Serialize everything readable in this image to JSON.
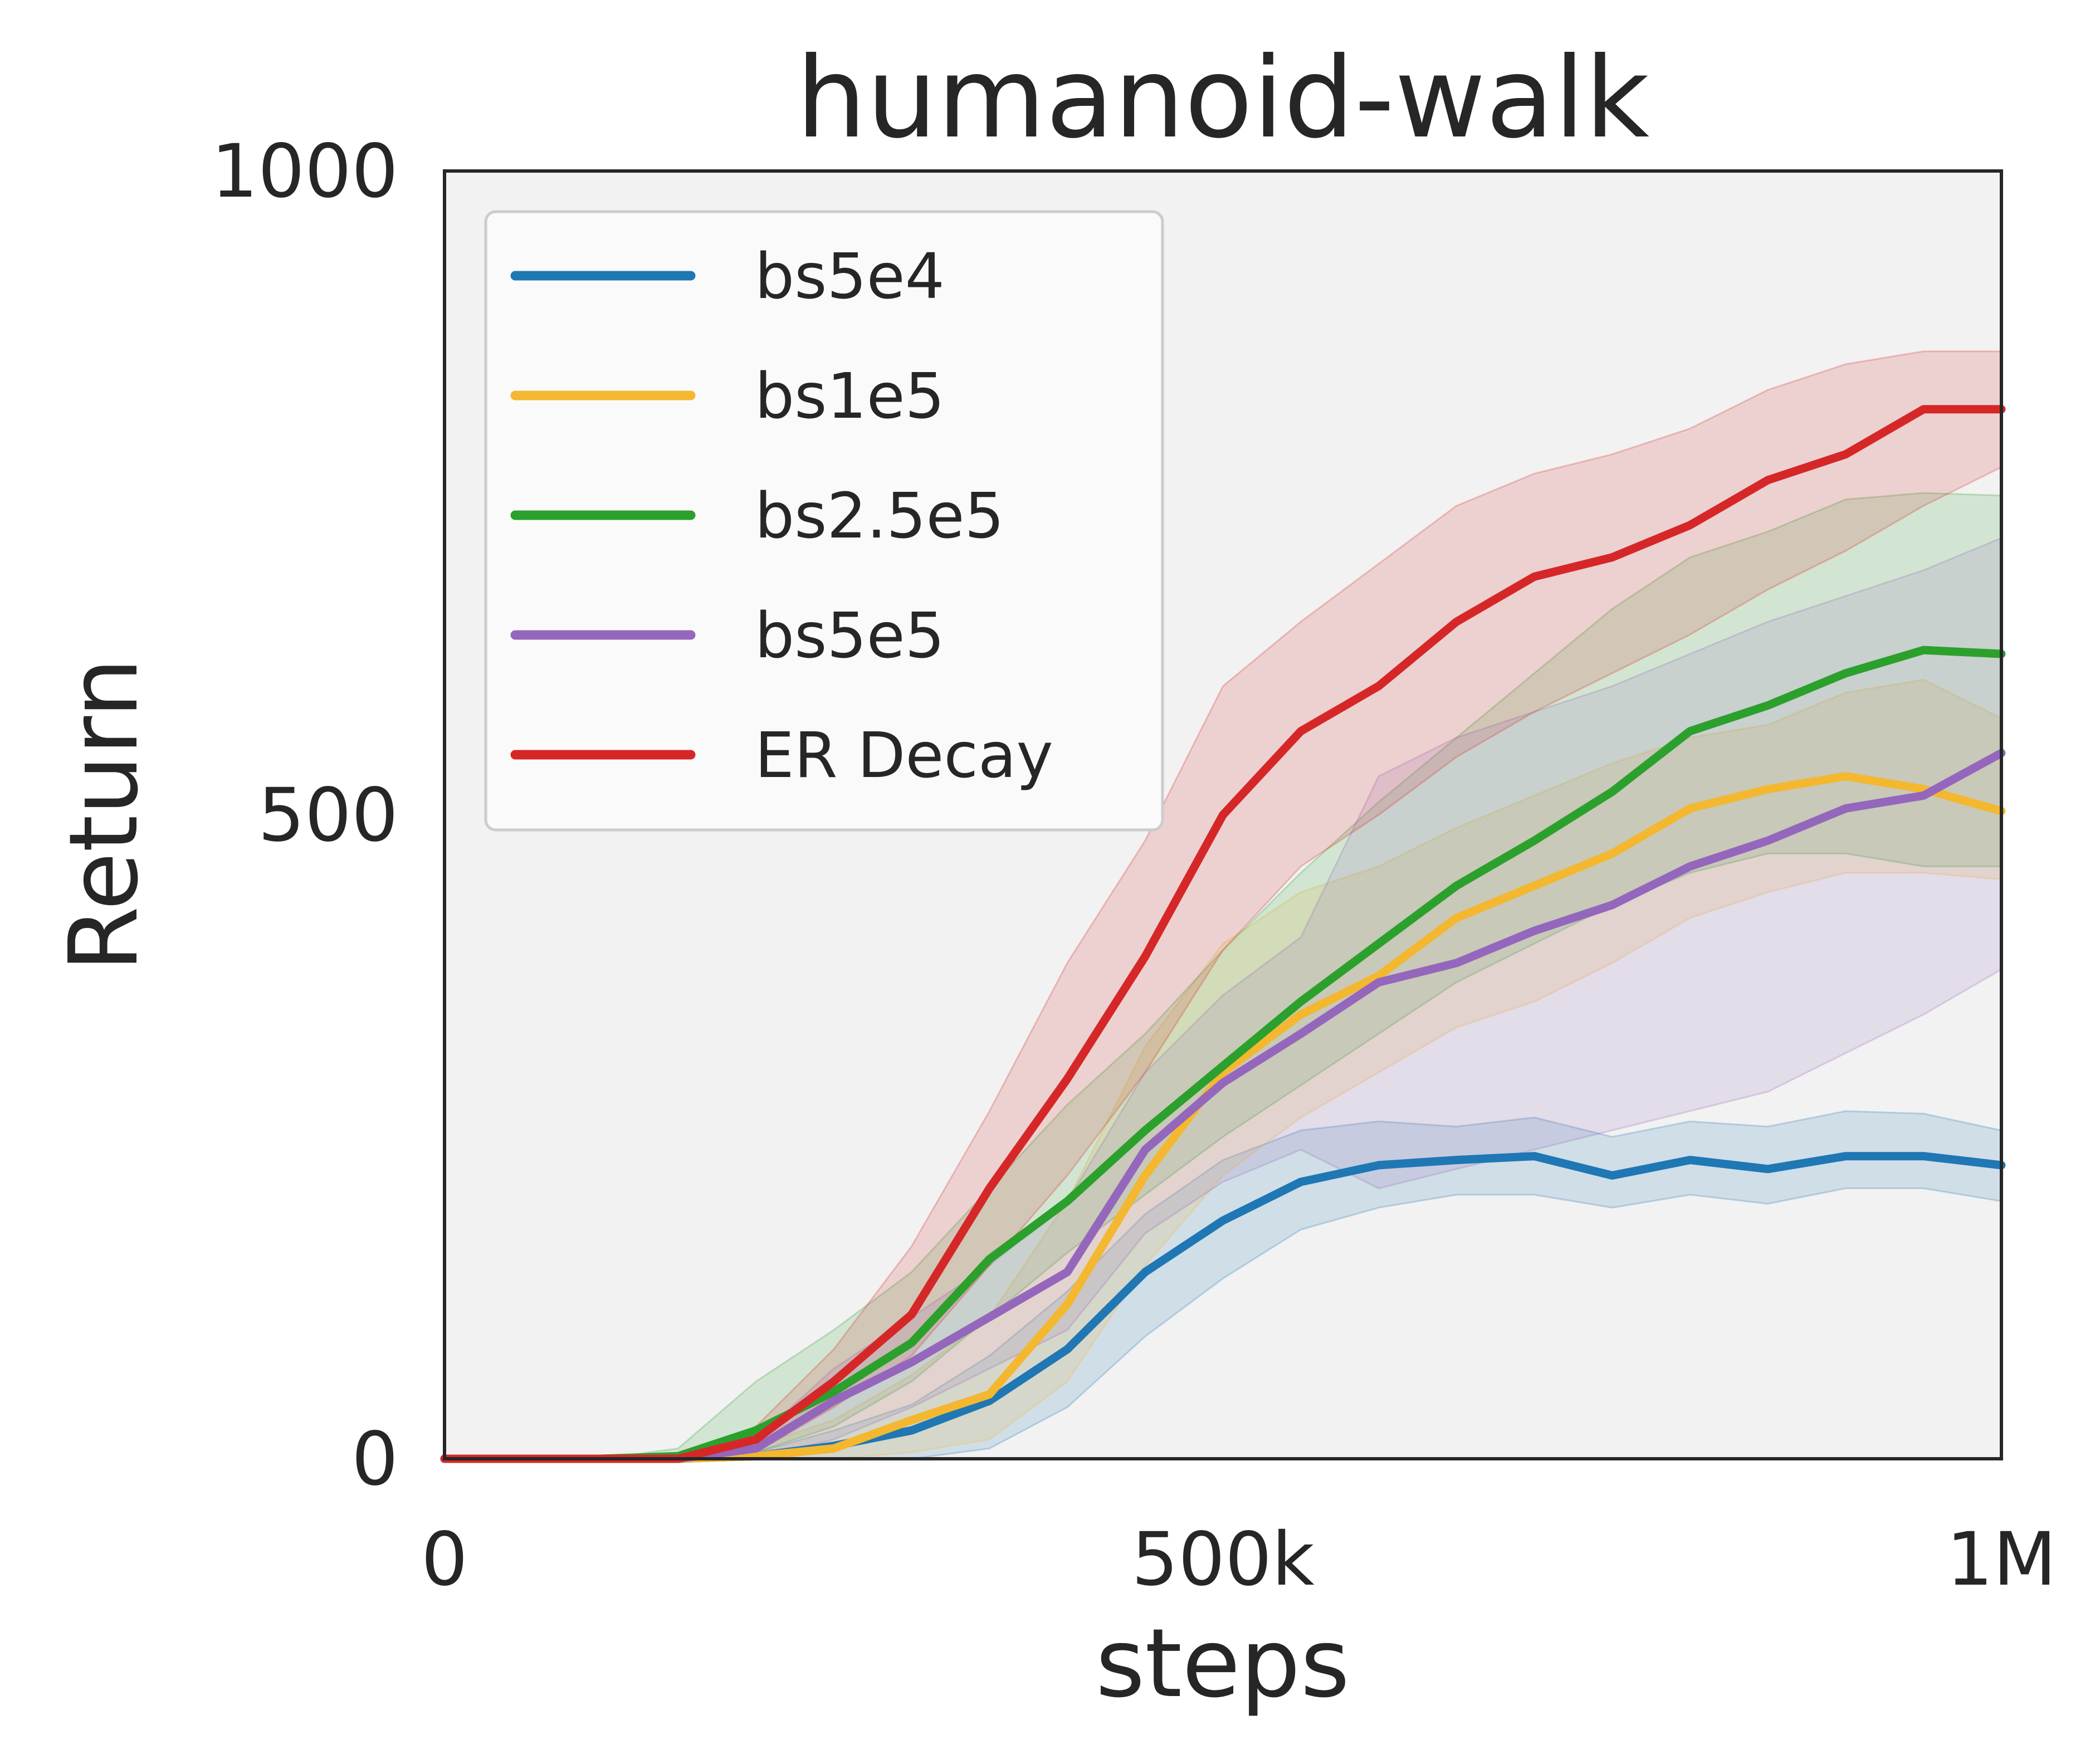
{
  "chart_data": {
    "type": "line",
    "title": "humanoid-walk",
    "xlabel": "steps",
    "ylabel": "Return",
    "xlim": [
      0,
      1000000
    ],
    "ylim": [
      0,
      1000
    ],
    "xticks": [
      {
        "value": 0,
        "label": "0"
      },
      {
        "value": 500000,
        "label": "500k"
      },
      {
        "value": 1000000,
        "label": "1M"
      }
    ],
    "yticks": [
      {
        "value": 0,
        "label": "0"
      },
      {
        "value": 500,
        "label": "500"
      },
      {
        "value": 1000,
        "label": "1000"
      }
    ],
    "grid": false,
    "legend_position": "upper-left",
    "background": "#f2f2f2",
    "x": [
      0,
      50000,
      100000,
      150000,
      200000,
      250000,
      300000,
      350000,
      400000,
      450000,
      500000,
      550000,
      600000,
      650000,
      700000,
      750000,
      800000,
      850000,
      900000,
      950000,
      1000000
    ],
    "series": [
      {
        "name": "bs5e4",
        "color": "#1f77b4",
        "values": [
          0,
          0,
          0,
          0,
          2,
          10,
          22,
          45,
          85,
          145,
          185,
          215,
          228,
          232,
          235,
          220,
          232,
          225,
          235,
          235,
          228
        ],
        "lower": [
          0,
          0,
          0,
          0,
          0,
          0,
          0,
          8,
          40,
          95,
          140,
          178,
          195,
          205,
          205,
          195,
          205,
          198,
          210,
          210,
          200
        ],
        "upper": [
          0,
          0,
          0,
          0,
          5,
          22,
          42,
          80,
          130,
          190,
          232,
          255,
          262,
          258,
          265,
          250,
          262,
          258,
          270,
          268,
          255
        ]
      },
      {
        "name": "bs1e5",
        "color": "#f4b730",
        "values": [
          0,
          0,
          0,
          0,
          2,
          8,
          30,
          50,
          120,
          220,
          300,
          345,
          375,
          420,
          445,
          470,
          505,
          520,
          530,
          520,
          503
        ],
        "lower": [
          0,
          0,
          0,
          0,
          0,
          0,
          5,
          15,
          60,
          150,
          220,
          265,
          300,
          335,
          355,
          385,
          420,
          440,
          455,
          455,
          450
        ],
        "upper": [
          0,
          0,
          0,
          0,
          10,
          30,
          65,
          110,
          200,
          320,
          400,
          440,
          460,
          490,
          515,
          540,
          560,
          570,
          595,
          605,
          575
        ]
      },
      {
        "name": "bs2.5e5",
        "color": "#2ca02c",
        "values": [
          0,
          0,
          0,
          2,
          22,
          52,
          90,
          155,
          200,
          255,
          305,
          355,
          400,
          445,
          480,
          518,
          565,
          585,
          610,
          628,
          625
        ],
        "lower": [
          0,
          0,
          0,
          0,
          5,
          25,
          60,
          110,
          160,
          205,
          250,
          290,
          330,
          370,
          400,
          430,
          455,
          470,
          470,
          460,
          460
        ],
        "upper": [
          0,
          0,
          0,
          8,
          60,
          100,
          145,
          210,
          275,
          330,
          395,
          455,
          510,
          560,
          610,
          660,
          700,
          720,
          745,
          750,
          748
        ]
      },
      {
        "name": "bs5e5",
        "color": "#9467bd",
        "values": [
          0,
          0,
          0,
          0,
          8,
          45,
          75,
          110,
          145,
          240,
          292,
          330,
          370,
          385,
          410,
          430,
          460,
          480,
          505,
          515,
          548
        ],
        "lower": [
          0,
          0,
          0,
          0,
          0,
          15,
          40,
          70,
          100,
          175,
          215,
          240,
          210,
          225,
          240,
          255,
          270,
          285,
          315,
          345,
          380
        ],
        "upper": [
          0,
          0,
          0,
          0,
          15,
          70,
          110,
          150,
          200,
          300,
          360,
          405,
          530,
          560,
          580,
          600,
          625,
          650,
          670,
          690,
          715
        ]
      },
      {
        "name": "ER Decay",
        "color": "#d62728",
        "values": [
          0,
          0,
          0,
          0,
          15,
          60,
          112,
          210,
          295,
          390,
          500,
          565,
          600,
          650,
          685,
          700,
          725,
          760,
          780,
          815,
          815
        ],
        "lower": [
          0,
          0,
          0,
          0,
          5,
          40,
          80,
          150,
          220,
          300,
          395,
          460,
          500,
          545,
          580,
          610,
          640,
          675,
          705,
          740,
          770
        ],
        "upper": [
          0,
          0,
          0,
          0,
          25,
          85,
          165,
          270,
          385,
          480,
          600,
          650,
          695,
          740,
          765,
          780,
          800,
          830,
          850,
          860,
          860
        ]
      }
    ]
  }
}
